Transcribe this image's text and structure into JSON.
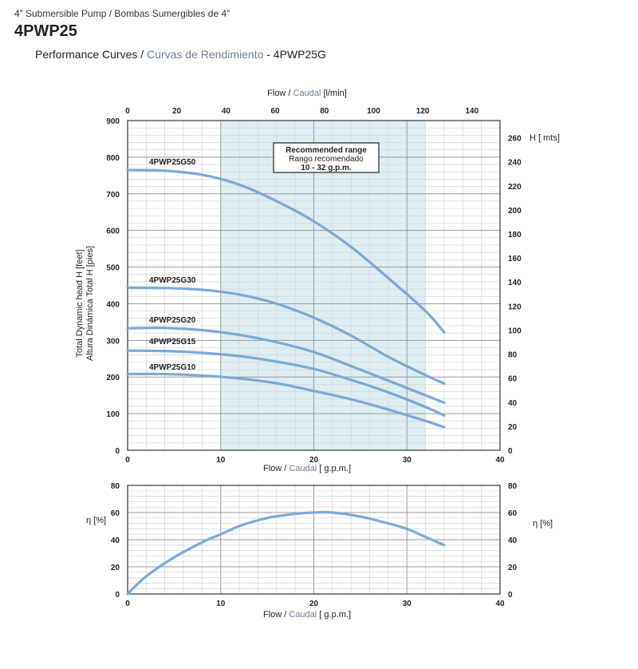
{
  "header": {
    "subtitle": "4” Submersible Pump / Bombas Sumergibles de 4”",
    "model": "4PWP25",
    "title_en": "Performance Curves / ",
    "title_es": "Curvas de Rendimiento",
    "title_model": " - 4PWP25G"
  },
  "colors": {
    "curve": "#7aa9d9",
    "recommended_band": "#deeef2",
    "grid_minor": "#cfcfcf",
    "grid_major": "#9a9a9a"
  },
  "chart_data": [
    {
      "type": "line",
      "top_axis_label_en": "Flow / ",
      "top_axis_label_es": "Caudal",
      "top_axis_label_unit": " [l/min]",
      "top_ticks": [
        "0",
        "20",
        "40",
        "60",
        "80",
        "100",
        "120",
        "140"
      ],
      "xlabel_en": "Flow / ",
      "xlabel_es": "Caudal",
      "xlabel_unit": " [ g.p.m.]",
      "ylabel_en": "Total Dynamic head H [feet]",
      "ylabel_es": "Altura Dinámica Total H [pies]",
      "right_axis_label": "H [ mts]",
      "right_ticks": [
        "0",
        "20",
        "40",
        "60",
        "80",
        "100",
        "120",
        "140",
        "160",
        "180",
        "200",
        "220",
        "240",
        "260"
      ],
      "xlim": [
        0,
        40
      ],
      "ylim": [
        0,
        900
      ],
      "x_ticks": [
        "0",
        "10",
        "20",
        "30",
        "40"
      ],
      "y_ticks": [
        "0",
        "100",
        "200",
        "300",
        "400",
        "500",
        "600",
        "700",
        "800",
        "900"
      ],
      "recommended_range": {
        "x_from": 10,
        "x_to": 32,
        "line1": "Recommended range",
        "line2": "Rango recomendado",
        "line3": "10 - 32 g.p.m."
      },
      "series": [
        {
          "name": "4PWP25G50",
          "x": [
            0,
            4,
            8,
            12,
            16,
            20,
            24,
            28,
            32,
            34
          ],
          "y": [
            765,
            763,
            752,
            725,
            680,
            625,
            555,
            470,
            380,
            322
          ]
        },
        {
          "name": "4PWP25G30",
          "x": [
            0,
            4,
            8,
            12,
            16,
            20,
            24,
            28,
            32,
            34
          ],
          "y": [
            444,
            443,
            438,
            425,
            400,
            362,
            313,
            255,
            205,
            182
          ]
        },
        {
          "name": "4PWP25G20",
          "x": [
            0,
            4,
            8,
            12,
            16,
            20,
            24,
            28,
            32,
            34
          ],
          "y": [
            333,
            334,
            328,
            315,
            295,
            268,
            230,
            190,
            150,
            130
          ]
        },
        {
          "name": "4PWP25G15",
          "x": [
            0,
            4,
            8,
            12,
            16,
            20,
            24,
            28,
            32,
            34
          ],
          "y": [
            272,
            271,
            266,
            257,
            242,
            222,
            192,
            158,
            118,
            95
          ]
        },
        {
          "name": "4PWP25G10",
          "x": [
            0,
            4,
            8,
            12,
            16,
            20,
            24,
            28,
            32,
            34
          ],
          "y": [
            208,
            208,
            204,
            196,
            183,
            162,
            139,
            111,
            80,
            63
          ]
        }
      ]
    },
    {
      "type": "line",
      "xlabel_en": "Flow / ",
      "xlabel_es": "Caudal",
      "xlabel_unit": " [ g.p.m.]",
      "ylabel": "η [%]",
      "xlim": [
        0,
        40
      ],
      "ylim": [
        0,
        80
      ],
      "x_ticks": [
        "0",
        "10",
        "20",
        "30",
        "40"
      ],
      "y_ticks": [
        "0",
        "20",
        "40",
        "60",
        "80"
      ],
      "series": [
        {
          "x": [
            0,
            2,
            5,
            8,
            10,
            12,
            15,
            18,
            20,
            22,
            25,
            28,
            30,
            32,
            34
          ],
          "y": [
            0,
            13,
            27,
            38,
            44,
            50,
            56,
            59,
            60,
            60,
            57,
            52,
            48,
            42,
            36
          ]
        }
      ]
    }
  ]
}
